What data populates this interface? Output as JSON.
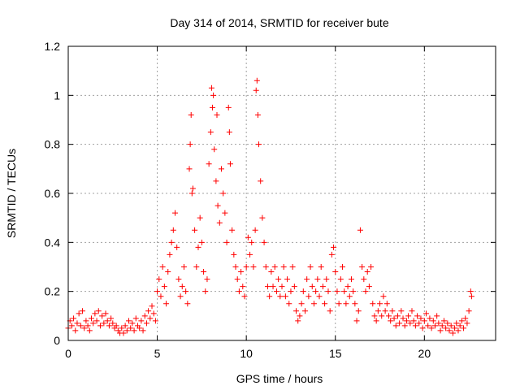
{
  "chart_data": {
    "type": "scatter",
    "title": "Day 314 of 2014, SRMTID for receiver bute",
    "xlabel": "GPS time / hours",
    "ylabel": "SRMTID / TECUs",
    "xlim": [
      0,
      24
    ],
    "ylim": [
      0,
      1.2
    ],
    "grid": true,
    "marker": "+",
    "color": "#ff0000",
    "x_ticks": [
      0,
      5,
      10,
      15,
      20
    ],
    "x_tick_labels": [
      "0",
      "5",
      "10",
      "15",
      "20"
    ],
    "y_ticks": [
      0,
      0.2,
      0.4,
      0.6,
      0.8,
      1.0,
      1.2
    ],
    "y_tick_labels": [
      "0",
      "0.2",
      "0.4",
      "0.6",
      "0.8",
      "1",
      "1.2"
    ],
    "series": [
      {
        "name": "SRMTID",
        "points": [
          [
            0.0,
            0.05
          ],
          [
            0.1,
            0.08
          ],
          [
            0.2,
            0.06
          ],
          [
            0.3,
            0.09
          ],
          [
            0.4,
            0.04
          ],
          [
            0.5,
            0.07
          ],
          [
            0.6,
            0.11
          ],
          [
            0.7,
            0.06
          ],
          [
            0.8,
            0.12
          ],
          [
            0.9,
            0.05
          ],
          [
            1.0,
            0.08
          ],
          [
            1.1,
            0.06
          ],
          [
            1.2,
            0.04
          ],
          [
            1.3,
            0.09
          ],
          [
            1.4,
            0.07
          ],
          [
            1.5,
            0.11
          ],
          [
            1.6,
            0.08
          ],
          [
            1.7,
            0.12
          ],
          [
            1.8,
            0.06
          ],
          [
            1.9,
            0.1
          ],
          [
            2.0,
            0.07
          ],
          [
            2.1,
            0.11
          ],
          [
            2.2,
            0.08
          ],
          [
            2.3,
            0.06
          ],
          [
            2.4,
            0.09
          ],
          [
            2.5,
            0.07
          ],
          [
            2.6,
            0.05
          ],
          [
            2.7,
            0.06
          ],
          [
            2.8,
            0.04
          ],
          [
            2.9,
            0.03
          ],
          [
            3.0,
            0.05
          ],
          [
            3.1,
            0.03
          ],
          [
            3.2,
            0.06
          ],
          [
            3.3,
            0.04
          ],
          [
            3.4,
            0.08
          ],
          [
            3.5,
            0.05
          ],
          [
            3.6,
            0.07
          ],
          [
            3.7,
            0.04
          ],
          [
            3.8,
            0.09
          ],
          [
            3.9,
            0.06
          ],
          [
            4.0,
            0.05
          ],
          [
            4.1,
            0.08
          ],
          [
            4.2,
            0.04
          ],
          [
            4.3,
            0.1
          ],
          [
            4.4,
            0.07
          ],
          [
            4.5,
            0.12
          ],
          [
            4.6,
            0.09
          ],
          [
            4.7,
            0.14
          ],
          [
            4.8,
            0.11
          ],
          [
            4.9,
            0.08
          ],
          [
            5.0,
            0.2
          ],
          [
            5.1,
            0.25
          ],
          [
            5.2,
            0.18
          ],
          [
            5.3,
            0.3
          ],
          [
            5.4,
            0.22
          ],
          [
            5.5,
            0.15
          ],
          [
            5.6,
            0.28
          ],
          [
            5.7,
            0.35
          ],
          [
            5.8,
            0.4
          ],
          [
            5.9,
            0.45
          ],
          [
            6.0,
            0.52
          ],
          [
            6.1,
            0.38
          ],
          [
            6.2,
            0.25
          ],
          [
            6.3,
            0.18
          ],
          [
            6.4,
            0.22
          ],
          [
            6.5,
            0.3
          ],
          [
            6.6,
            0.2
          ],
          [
            6.7,
            0.15
          ],
          [
            6.8,
            0.7
          ],
          [
            6.85,
            0.8
          ],
          [
            6.9,
            0.92
          ],
          [
            6.95,
            0.6
          ],
          [
            7.0,
            0.62
          ],
          [
            7.1,
            0.45
          ],
          [
            7.2,
            0.3
          ],
          [
            7.3,
            0.38
          ],
          [
            7.4,
            0.5
          ],
          [
            7.5,
            0.4
          ],
          [
            7.6,
            0.28
          ],
          [
            7.7,
            0.2
          ],
          [
            7.8,
            0.25
          ],
          [
            7.9,
            0.72
          ],
          [
            8.0,
            0.85
          ],
          [
            8.05,
            1.03
          ],
          [
            8.1,
            0.95
          ],
          [
            8.15,
            1.0
          ],
          [
            8.2,
            0.78
          ],
          [
            8.3,
            0.65
          ],
          [
            8.35,
            0.92
          ],
          [
            8.4,
            0.55
          ],
          [
            8.5,
            0.48
          ],
          [
            8.6,
            0.7
          ],
          [
            8.7,
            0.6
          ],
          [
            8.8,
            0.52
          ],
          [
            8.9,
            0.4
          ],
          [
            9.0,
            0.95
          ],
          [
            9.05,
            0.85
          ],
          [
            9.1,
            0.72
          ],
          [
            9.2,
            0.45
          ],
          [
            9.3,
            0.35
          ],
          [
            9.4,
            0.3
          ],
          [
            9.5,
            0.25
          ],
          [
            9.6,
            0.2
          ],
          [
            9.7,
            0.28
          ],
          [
            9.8,
            0.22
          ],
          [
            9.9,
            0.18
          ],
          [
            10.0,
            0.3
          ],
          [
            10.1,
            0.42
          ],
          [
            10.2,
            0.35
          ],
          [
            10.3,
            0.4
          ],
          [
            10.4,
            0.3
          ],
          [
            10.5,
            0.45
          ],
          [
            10.55,
            1.02
          ],
          [
            10.6,
            1.06
          ],
          [
            10.65,
            0.92
          ],
          [
            10.7,
            0.8
          ],
          [
            10.8,
            0.65
          ],
          [
            10.9,
            0.5
          ],
          [
            11.0,
            0.4
          ],
          [
            11.1,
            0.3
          ],
          [
            11.2,
            0.22
          ],
          [
            11.3,
            0.18
          ],
          [
            11.4,
            0.28
          ],
          [
            11.5,
            0.22
          ],
          [
            11.6,
            0.3
          ],
          [
            11.7,
            0.2
          ],
          [
            11.8,
            0.25
          ],
          [
            11.9,
            0.18
          ],
          [
            12.0,
            0.22
          ],
          [
            12.1,
            0.3
          ],
          [
            12.2,
            0.18
          ],
          [
            12.3,
            0.25
          ],
          [
            12.4,
            0.15
          ],
          [
            12.5,
            0.2
          ],
          [
            12.6,
            0.3
          ],
          [
            12.7,
            0.22
          ],
          [
            12.8,
            0.12
          ],
          [
            12.9,
            0.08
          ],
          [
            13.0,
            0.1
          ],
          [
            13.1,
            0.15
          ],
          [
            13.2,
            0.2
          ],
          [
            13.3,
            0.12
          ],
          [
            13.4,
            0.25
          ],
          [
            13.5,
            0.18
          ],
          [
            13.6,
            0.3
          ],
          [
            13.7,
            0.22
          ],
          [
            13.8,
            0.15
          ],
          [
            13.9,
            0.2
          ],
          [
            14.0,
            0.25
          ],
          [
            14.1,
            0.18
          ],
          [
            14.2,
            0.3
          ],
          [
            14.3,
            0.22
          ],
          [
            14.4,
            0.15
          ],
          [
            14.5,
            0.25
          ],
          [
            14.6,
            0.2
          ],
          [
            14.7,
            0.12
          ],
          [
            14.8,
            0.35
          ],
          [
            14.9,
            0.38
          ],
          [
            15.0,
            0.28
          ],
          [
            15.1,
            0.2
          ],
          [
            15.2,
            0.15
          ],
          [
            15.3,
            0.25
          ],
          [
            15.4,
            0.3
          ],
          [
            15.5,
            0.2
          ],
          [
            15.6,
            0.15
          ],
          [
            15.7,
            0.22
          ],
          [
            15.8,
            0.18
          ],
          [
            15.9,
            0.25
          ],
          [
            16.0,
            0.2
          ],
          [
            16.1,
            0.15
          ],
          [
            16.2,
            0.08
          ],
          [
            16.3,
            0.12
          ],
          [
            16.4,
            0.45
          ],
          [
            16.5,
            0.3
          ],
          [
            16.6,
            0.25
          ],
          [
            16.7,
            0.2
          ],
          [
            16.8,
            0.28
          ],
          [
            16.9,
            0.22
          ],
          [
            17.0,
            0.3
          ],
          [
            17.1,
            0.15
          ],
          [
            17.2,
            0.1
          ],
          [
            17.3,
            0.08
          ],
          [
            17.4,
            0.12
          ],
          [
            17.5,
            0.15
          ],
          [
            17.6,
            0.1
          ],
          [
            17.7,
            0.18
          ],
          [
            17.8,
            0.12
          ],
          [
            17.9,
            0.15
          ],
          [
            18.0,
            0.1
          ],
          [
            18.1,
            0.08
          ],
          [
            18.2,
            0.12
          ],
          [
            18.3,
            0.09
          ],
          [
            18.4,
            0.06
          ],
          [
            18.5,
            0.1
          ],
          [
            18.6,
            0.07
          ],
          [
            18.7,
            0.12
          ],
          [
            18.8,
            0.09
          ],
          [
            18.9,
            0.06
          ],
          [
            19.0,
            0.08
          ],
          [
            19.1,
            0.1
          ],
          [
            19.2,
            0.07
          ],
          [
            19.3,
            0.12
          ],
          [
            19.4,
            0.08
          ],
          [
            19.5,
            0.06
          ],
          [
            19.6,
            0.1
          ],
          [
            19.7,
            0.07
          ],
          [
            19.8,
            0.09
          ],
          [
            19.9,
            0.05
          ],
          [
            20.0,
            0.08
          ],
          [
            20.1,
            0.11
          ],
          [
            20.2,
            0.06
          ],
          [
            20.3,
            0.09
          ],
          [
            20.4,
            0.05
          ],
          [
            20.5,
            0.08
          ],
          [
            20.6,
            0.06
          ],
          [
            20.7,
            0.1
          ],
          [
            20.8,
            0.07
          ],
          [
            20.9,
            0.04
          ],
          [
            21.0,
            0.06
          ],
          [
            21.1,
            0.08
          ],
          [
            21.2,
            0.05
          ],
          [
            21.3,
            0.07
          ],
          [
            21.4,
            0.04
          ],
          [
            21.5,
            0.06
          ],
          [
            21.6,
            0.03
          ],
          [
            21.7,
            0.05
          ],
          [
            21.8,
            0.07
          ],
          [
            21.9,
            0.04
          ],
          [
            22.0,
            0.06
          ],
          [
            22.1,
            0.08
          ],
          [
            22.2,
            0.05
          ],
          [
            22.3,
            0.09
          ],
          [
            22.4,
            0.07
          ],
          [
            22.5,
            0.12
          ],
          [
            22.6,
            0.2
          ],
          [
            22.65,
            0.18
          ]
        ]
      }
    ]
  }
}
